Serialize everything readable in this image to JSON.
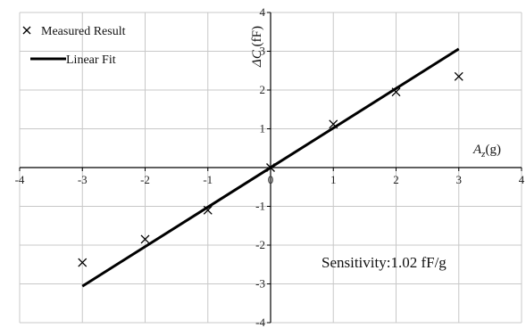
{
  "chart_data": {
    "type": "scatter",
    "x_ticks": [
      "-4",
      "-3",
      "-2",
      "-1",
      "0",
      "1",
      "2",
      "3",
      "4"
    ],
    "y_ticks": [
      "-4",
      "-3",
      "-2",
      "-1",
      "0",
      "1",
      "2",
      "3",
      "4"
    ],
    "xlim": [
      -4,
      4
    ],
    "ylim": [
      -4,
      4
    ],
    "grid": true,
    "legend_position": "top-left",
    "xlabel": {
      "italic": "A",
      "sub": "z",
      "rest": "(g)"
    },
    "ylabel": {
      "italic": "ΔC",
      "rest": " (fF)"
    },
    "series": [
      {
        "name": "Measured Result",
        "marker": "x",
        "points": [
          {
            "x": -3,
            "y": -2.45
          },
          {
            "x": -2,
            "y": -1.85
          },
          {
            "x": -1,
            "y": -1.1
          },
          {
            "x": 0,
            "y": 0.0
          },
          {
            "x": 1,
            "y": 1.12
          },
          {
            "x": 2,
            "y": 1.95
          },
          {
            "x": 3,
            "y": 2.35
          }
        ]
      },
      {
        "name": "Linear Fit",
        "marker": "line",
        "points": [
          {
            "x": -3,
            "y": -3.06
          },
          {
            "x": 3,
            "y": 3.06
          }
        ]
      }
    ],
    "annotation": "Sensitivity:1.02 fF/g",
    "colors": {
      "series": "#000000",
      "grid": "#c8c8c8"
    }
  }
}
